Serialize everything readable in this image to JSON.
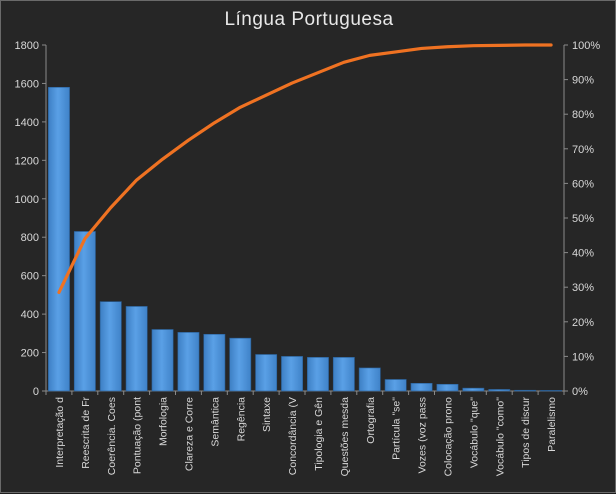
{
  "chart_data": {
    "type": "bar",
    "title": "Língua Portuguesa",
    "categories": [
      "Interpretação d",
      "Reescrita de Fr",
      "Coerência. Coes",
      "Pontuação (pont",
      "Morfologia",
      "Clareza e Corre",
      "Semântica",
      "Regência",
      "Sintaxe",
      "Concordância (V",
      "Tipologia e Gên",
      "Questões mesda",
      "Ortografia",
      "Partícula \"se\"",
      "Vozes (voz pass",
      "Colocação prono",
      "Vocábulo \"que\"",
      "Vocábulo \"como\"",
      "Tipos de discur",
      "Paralelismo"
    ],
    "series": [
      {
        "type": "bar",
        "color": "#4f95d9",
        "values": [
          1580,
          830,
          465,
          440,
          320,
          305,
          295,
          275,
          190,
          180,
          175,
          175,
          120,
          60,
          40,
          35,
          15,
          8,
          4,
          3
        ]
      },
      {
        "type": "line",
        "axis": "secondary",
        "color": "#ef7222",
        "values": [
          28.5,
          44,
          53,
          61,
          67,
          72.5,
          77.5,
          82,
          85.5,
          89,
          92,
          95,
          97,
          98,
          99,
          99.5,
          99.8,
          99.9,
          100,
          100
        ]
      }
    ],
    "ylim": [
      0,
      1800
    ],
    "yticks": [
      0,
      200,
      400,
      600,
      800,
      1000,
      1200,
      1400,
      1600,
      1800
    ],
    "y2lim": [
      0,
      100
    ],
    "y2ticks": [
      "0%",
      "10%",
      "20%",
      "30%",
      "40%",
      "50%",
      "60%",
      "70%",
      "80%",
      "90%",
      "100%"
    ],
    "grid": false,
    "legend": "none"
  }
}
